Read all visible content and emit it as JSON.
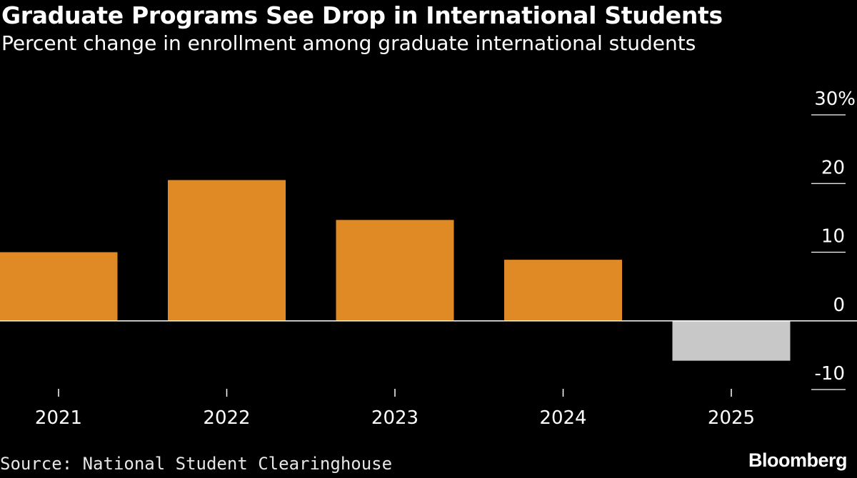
{
  "header": {
    "title": "Graduate Programs See Drop in International Students",
    "subtitle": "Percent change in enrollment among graduate international students"
  },
  "footer": {
    "source": "Source: National Student Clearinghouse",
    "brand": "Bloomberg"
  },
  "colors": {
    "background": "#000000",
    "positive_bar": "#DF8A25",
    "negative_bar": "#C8C8C8",
    "axis": "#FFFFFF",
    "text": "#FFFFFF"
  },
  "chart_data": {
    "type": "bar",
    "title": "Graduate Programs See Drop in International Students",
    "subtitle": "Percent change in enrollment among graduate international students",
    "categories": [
      "2021",
      "2022",
      "2023",
      "2024",
      "2025"
    ],
    "values": [
      10,
      20.5,
      14.7,
      8.9,
      -5.8
    ],
    "xlabel": "",
    "ylabel": "",
    "ylim": [
      -10,
      30
    ],
    "yticks": [
      {
        "value": 30,
        "label": "30%"
      },
      {
        "value": 20,
        "label": "20"
      },
      {
        "value": 10,
        "label": "10"
      },
      {
        "value": 0,
        "label": "0"
      },
      {
        "value": -10,
        "label": "-10"
      }
    ],
    "grid": false,
    "legend": "none"
  }
}
